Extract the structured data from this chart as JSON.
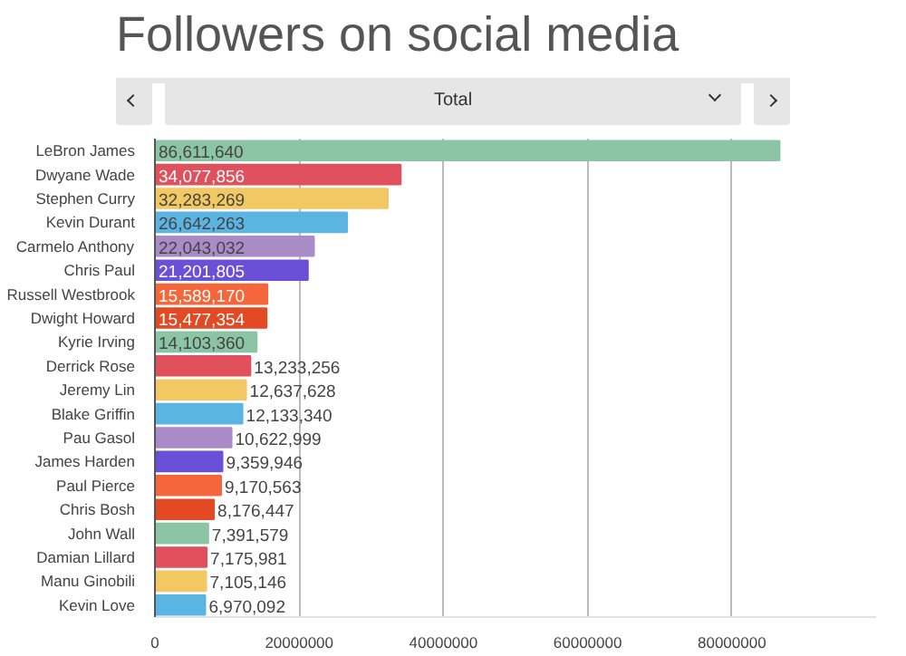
{
  "chart_data": {
    "type": "bar",
    "orientation": "horizontal",
    "title": "Followers on social media",
    "annotations": [
      "Total"
    ],
    "categories": [
      "LeBron James",
      "Dwyane Wade",
      "Stephen Curry",
      "Kevin Durant",
      "Carmelo Anthony",
      "Chris Paul",
      "Russell Westbrook",
      "Dwight Howard",
      "Kyrie Irving",
      "Derrick Rose",
      "Jeremy Lin",
      "Blake Griffin",
      "Pau Gasol",
      "James Harden",
      "Paul Pierce",
      "Chris Bosh",
      "John Wall",
      "Damian Lillard",
      "Manu Ginobili",
      "Kevin Love"
    ],
    "values": [
      86611640,
      34077856,
      32283269,
      26642263,
      22043032,
      21201805,
      15589170,
      15477354,
      14103360,
      13233256,
      12637628,
      12133340,
      10622999,
      9359946,
      9170563,
      8176447,
      7391579,
      7175981,
      7105146,
      6970092
    ],
    "colors": [
      "#8cc5a5",
      "#e0515d",
      "#f2c862",
      "#5bb5e3",
      "#a98bc8",
      "#6a4fd8",
      "#f5673a",
      "#e34a24",
      "#8cc5a5",
      "#e0515d",
      "#f2c862",
      "#5bb5e3",
      "#a98bc8",
      "#6a4fd8",
      "#f5673a",
      "#e34a24",
      "#8cc5a5",
      "#e0515d",
      "#f2c862",
      "#5bb5e3"
    ],
    "xlim": [
      0,
      100000000
    ],
    "xticks": [
      0,
      20000000,
      40000000,
      60000000,
      80000000
    ],
    "value_labels": [
      "86,611,640",
      "34,077,856",
      "32,283,269",
      "26,642,263",
      "22,043,032",
      "21,201,805",
      "15,589,170",
      "15,477,354",
      "14,103,360",
      "13,233,256",
      "12,637,628",
      "12,133,340",
      "10,622,999",
      "9,359,946",
      "9,170,563",
      "8,176,447",
      "7,391,579",
      "7,175,981",
      "7,105,146",
      "6,970,092"
    ],
    "grid": "x"
  }
}
